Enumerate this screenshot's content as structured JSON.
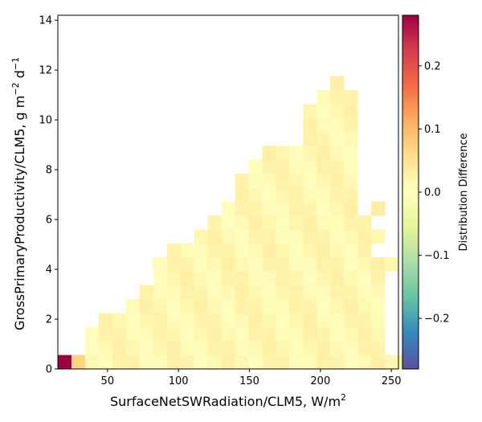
{
  "chart_data": {
    "type": "heatmap",
    "title": "",
    "xlabel": "SurfaceNetSWRadiation/CLM5,",
    "xunit": "W/m",
    "xunit_sup": "2",
    "ylabel": "GrossPrimaryProductivity/CLM5,",
    "yunit_g": "g m",
    "yunit_g_sup": "−2",
    "yunit_d": "d",
    "yunit_d_sup": "−1",
    "xlim": [
      15,
      255
    ],
    "ylim": [
      0,
      14.2
    ],
    "xticks": [
      50,
      100,
      150,
      200,
      250
    ],
    "yticks": [
      0,
      2,
      4,
      6,
      8,
      10,
      12,
      14
    ],
    "colorbar": {
      "label": "Distribution Difference",
      "range": [
        -0.28,
        0.28
      ],
      "ticks": [
        -0.2,
        -0.1,
        0.0,
        0.1,
        0.2
      ],
      "tick_labels": [
        "−0.2",
        "−0.1",
        "0.0",
        "0.1",
        "0.2"
      ],
      "colormap": "Spectral_r",
      "stops": [
        "#5e4fa2",
        "#3288bd",
        "#66c2a5",
        "#abdda4",
        "#e6f598",
        "#ffffbf",
        "#fee08b",
        "#fdae61",
        "#f46d43",
        "#d53e4f",
        "#9e0142"
      ]
    },
    "bins": {
      "x_start": 15,
      "x_width": 9.6,
      "y_width": 0.56,
      "n_x": 25
    },
    "column_extents": [
      {
        "col": 0,
        "top_row": 0
      },
      {
        "col": 1,
        "top_row": 0
      },
      {
        "col": 2,
        "top_row": 2
      },
      {
        "col": 3,
        "top_row": 3
      },
      {
        "col": 4,
        "top_row": 3
      },
      {
        "col": 5,
        "top_row": 4
      },
      {
        "col": 6,
        "top_row": 5
      },
      {
        "col": 7,
        "top_row": 7
      },
      {
        "col": 8,
        "top_row": 8
      },
      {
        "col": 9,
        "top_row": 8
      },
      {
        "col": 10,
        "top_row": 9
      },
      {
        "col": 11,
        "top_row": 10
      },
      {
        "col": 12,
        "top_row": 11
      },
      {
        "col": 13,
        "top_row": 13
      },
      {
        "col": 14,
        "top_row": 14
      },
      {
        "col": 15,
        "top_row": 15
      },
      {
        "col": 16,
        "top_row": 15
      },
      {
        "col": 17,
        "top_row": 15
      },
      {
        "col": 18,
        "top_row": 18
      },
      {
        "col": 19,
        "top_row": 19
      },
      {
        "col": 20,
        "top_row": 20
      },
      {
        "col": 21,
        "top_row": 19
      },
      {
        "col": 22,
        "top_row": 13
      },
      {
        "col": 23,
        "top_row": 9
      },
      {
        "col": 24,
        "top_row": 7
      }
    ],
    "gaps": [
      {
        "col": 22,
        "rows_from": 11,
        "rows_to": 14
      },
      {
        "col": 23,
        "rows_from": 8,
        "rows_to": 9
      },
      {
        "col": 24,
        "rows_from": 1,
        "rows_to": 7
      }
    ],
    "extra_cells": [
      {
        "col": 23,
        "row": 11,
        "value": 0.03
      },
      {
        "col": 25,
        "row": 0,
        "value": 0.02
      }
    ],
    "special_cells": [
      {
        "col": 0,
        "row": 0,
        "value": 0.28
      },
      {
        "col": 1,
        "row": 0,
        "value": 0.07
      }
    ],
    "base_value": 0.015
  }
}
